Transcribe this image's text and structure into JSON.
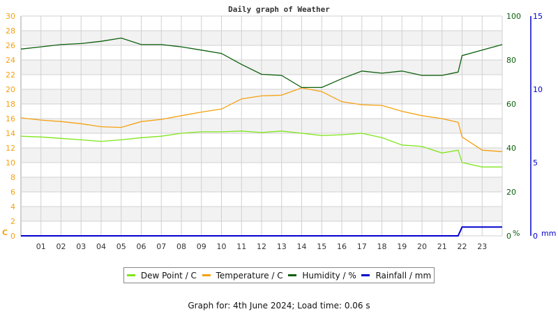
{
  "title": "Daily graph of Weather",
  "colors": {
    "dew_point": "#7fe51a",
    "temperature": "#f5a00e",
    "humidity": "#0b5e0b",
    "rainfall": "#0000cc",
    "left_axis": "#f5a00e",
    "humidity_axis": "#0b5e0b",
    "rain_axis": "#0000cc",
    "grid": "#d0d0d0",
    "band": "#f2f2f2"
  },
  "axes": {
    "left_unit": "C",
    "humidity_unit": "%",
    "rain_unit": "mm"
  },
  "legend": [
    {
      "key": "dew_point",
      "label": "Dew Point / C"
    },
    {
      "key": "temperature",
      "label": "Temperature / C"
    },
    {
      "key": "humidity",
      "label": "Humidity / %"
    },
    {
      "key": "rainfall",
      "label": "Rainfall / mm"
    }
  ],
  "footer": "Graph for: 4th June 2024; Load time: 0.06 s",
  "chart_data": {
    "type": "line",
    "title": "Daily graph of Weather",
    "xlabel": "",
    "x": [
      0,
      1,
      2,
      3,
      4,
      5,
      6,
      7,
      8,
      9,
      10,
      11,
      12,
      13,
      14,
      15,
      16,
      17,
      18,
      19,
      20,
      21,
      21.8,
      22,
      23,
      24
    ],
    "x_tick_labels": [
      "01",
      "02",
      "03",
      "04",
      "05",
      "06",
      "07",
      "08",
      "09",
      "10",
      "11",
      "12",
      "13",
      "14",
      "15",
      "16",
      "17",
      "18",
      "19",
      "20",
      "21",
      "22",
      "23"
    ],
    "grid": true,
    "legend_position": "bottom",
    "y_axes": [
      {
        "name": "Temperature / Dew Point",
        "unit": "C",
        "side": "left",
        "range": [
          0,
          30
        ],
        "ticks": [
          0,
          2,
          4,
          6,
          8,
          10,
          12,
          14,
          16,
          18,
          20,
          22,
          24,
          26,
          28,
          30
        ]
      },
      {
        "name": "Humidity",
        "unit": "%",
        "side": "right",
        "range": [
          0,
          100
        ],
        "ticks": [
          0,
          20,
          40,
          60,
          80,
          100
        ]
      },
      {
        "name": "Rainfall",
        "unit": "mm",
        "side": "right",
        "range": [
          0,
          15
        ],
        "ticks": [
          0,
          5,
          10,
          15
        ]
      }
    ],
    "series": [
      {
        "name": "Dew Point / C",
        "axis": "C",
        "values": [
          13.6,
          13.5,
          13.3,
          13.1,
          12.9,
          13.1,
          13.4,
          13.6,
          14.0,
          14.2,
          14.2,
          14.3,
          14.1,
          14.3,
          14.0,
          13.7,
          13.8,
          14.0,
          13.4,
          12.4,
          12.2,
          11.3,
          11.7,
          10.0,
          9.4,
          9.4
        ]
      },
      {
        "name": "Temperature / C",
        "axis": "C",
        "values": [
          16.1,
          15.8,
          15.6,
          15.3,
          14.9,
          14.8,
          15.6,
          15.9,
          16.4,
          16.9,
          17.3,
          18.7,
          19.1,
          19.2,
          20.2,
          19.7,
          18.3,
          17.9,
          17.8,
          17.0,
          16.4,
          16.0,
          15.5,
          13.5,
          11.7,
          11.5
        ]
      },
      {
        "name": "Humidity / %",
        "axis": "%",
        "values": [
          85,
          86,
          87,
          87.5,
          88.5,
          90,
          87,
          87,
          86,
          84.5,
          83,
          78,
          73.5,
          73,
          67.5,
          67.5,
          71.5,
          75,
          74,
          75,
          73,
          73,
          74.5,
          82,
          84.5,
          87
        ]
      },
      {
        "name": "Rainfall / mm",
        "axis": "mm",
        "values": [
          0,
          0,
          0,
          0,
          0,
          0,
          0,
          0,
          0,
          0,
          0,
          0,
          0,
          0,
          0,
          0,
          0,
          0,
          0,
          0,
          0,
          0,
          0,
          0.6,
          0.6,
          0.6
        ]
      }
    ]
  }
}
